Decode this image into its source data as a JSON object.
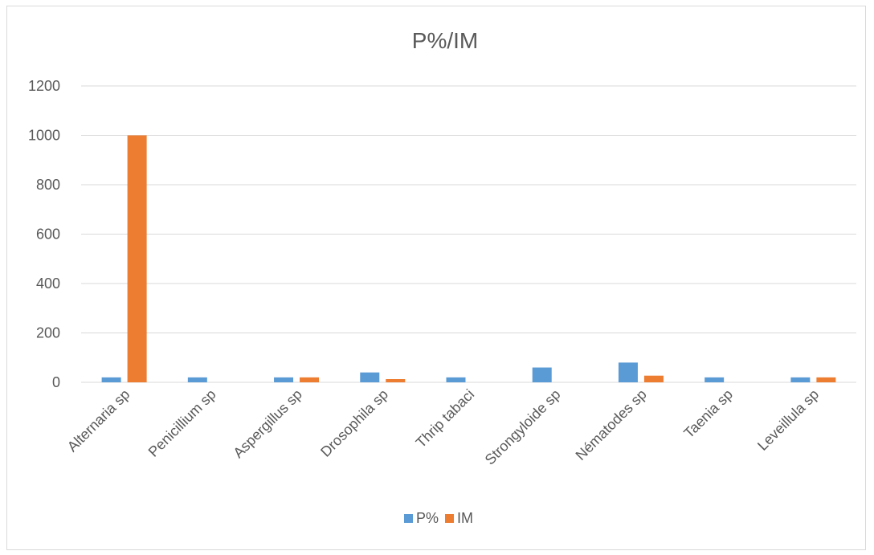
{
  "chart_data": {
    "type": "bar",
    "title": "P%/IM",
    "xlabel": "",
    "ylabel": "",
    "ylim": [
      0,
      1200
    ],
    "yticks": [
      0,
      200,
      400,
      600,
      800,
      1000,
      1200
    ],
    "grid": true,
    "legend_position": "bottom",
    "categories": [
      "Alternaria sp",
      "Penicillium sp",
      "Aspergillus sp",
      "Drosophila sp",
      "Thrip tabaci",
      "Strongyloide sp",
      "Nématodes sp",
      "Taenia sp",
      "Leveillula sp"
    ],
    "series": [
      {
        "name": "P%",
        "color": "#5b9bd5",
        "values": [
          20,
          20,
          20,
          40,
          20,
          60,
          80,
          20,
          20
        ]
      },
      {
        "name": "IM",
        "color": "#ed7d31",
        "values": [
          1000,
          0,
          20,
          13,
          0,
          0,
          27,
          0,
          20
        ]
      }
    ]
  }
}
